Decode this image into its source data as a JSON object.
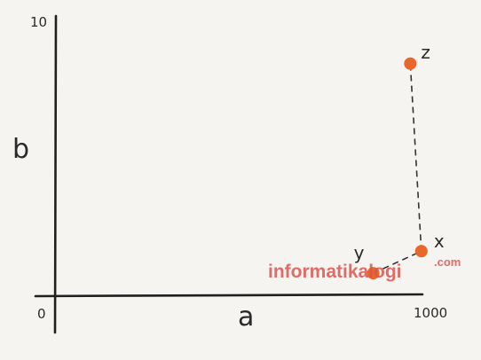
{
  "chart_data": {
    "type": "scatter",
    "title": "",
    "xlabel": "a",
    "ylabel": "b",
    "xlim": [
      0,
      1000
    ],
    "ylim": [
      0,
      10
    ],
    "x_tick_labels": [
      "0",
      "1000"
    ],
    "y_tick_labels": [
      "10"
    ],
    "grid": false,
    "legend": "none",
    "points": [
      {
        "label": "x",
        "x": 990,
        "y": 1.6
      },
      {
        "label": "y",
        "x": 860,
        "y": 0.8
      },
      {
        "label": "z",
        "x": 960,
        "y": 8.4
      }
    ],
    "dashed_connections": [
      [
        "y",
        "x"
      ],
      [
        "x",
        "z"
      ]
    ],
    "point_color": "#e8672a",
    "line_color": "#333333"
  },
  "watermark": {
    "main": "informatikalogi",
    "suffix": ".com",
    "color": "#d9534f"
  }
}
